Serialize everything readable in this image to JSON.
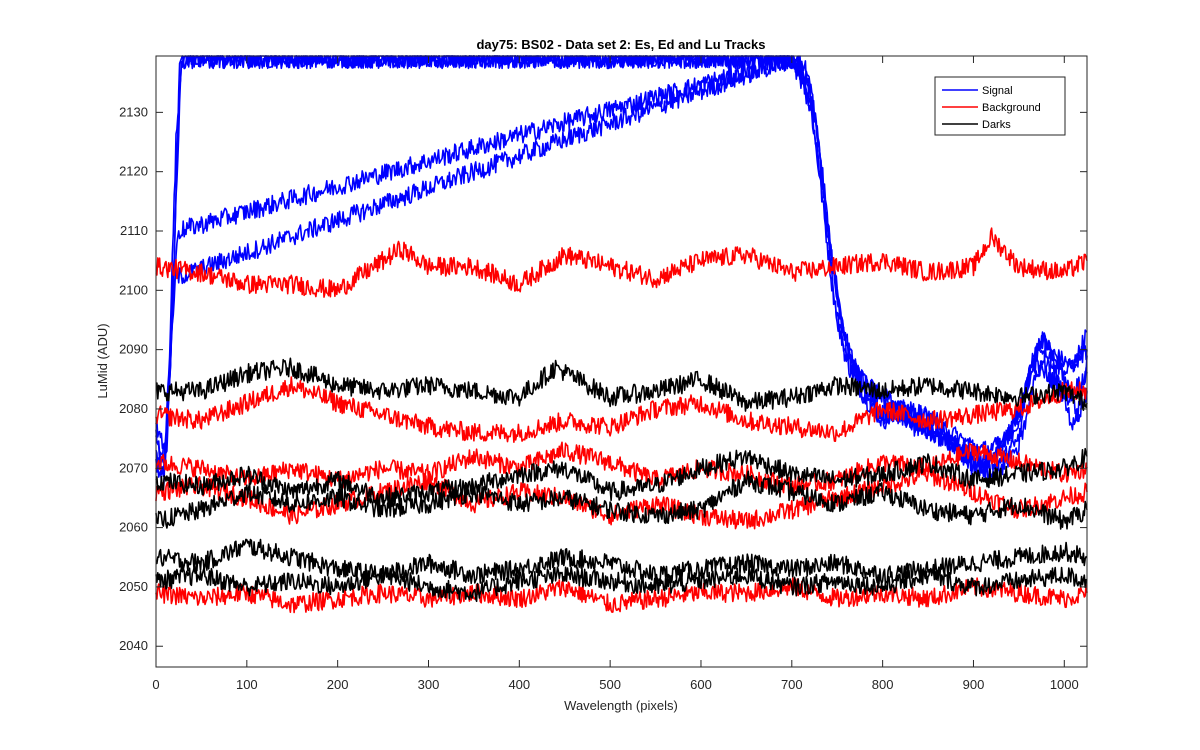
{
  "chart_data": {
    "type": "line",
    "title": "day75: BS02 - Data set 2: Es, Ed and Lu Tracks",
    "xlabel": "Wavelength (pixels)",
    "ylabel": "LuMid (ADU)",
    "xlim": [
      0,
      1025
    ],
    "ylim": [
      2036.5,
      2139.5
    ],
    "xticks": [
      0,
      100,
      200,
      300,
      400,
      500,
      600,
      700,
      800,
      900,
      1000
    ],
    "yticks": [
      2040,
      2050,
      2060,
      2070,
      2080,
      2090,
      2100,
      2110,
      2120,
      2130
    ],
    "grid": false,
    "legend_position": "top-right",
    "legend": [
      {
        "label": "Signal",
        "color": "#0000ff"
      },
      {
        "label": "Background",
        "color": "#ff0000"
      },
      {
        "label": "Darks",
        "color": "#000000"
      }
    ],
    "series": [
      {
        "group": "Signal",
        "color": "#0000ff",
        "x": [
          0,
          8,
          15,
          22,
          28,
          35,
          42,
          700,
          715,
          730,
          745,
          760,
          780,
          800,
          830,
          860,
          890,
          910,
          930,
          950,
          960,
          975,
          990,
          1010,
          1025
        ],
        "values": [
          2076,
          2068,
          2085,
          2115,
          2138,
          2139,
          2139,
          2139,
          2138,
          2120,
          2100,
          2088,
          2082,
          2078,
          2080,
          2078,
          2073,
          2071,
          2070,
          2074,
          2086,
          2092,
          2089,
          2087,
          2093
        ]
      },
      {
        "group": "Signal",
        "color": "#0000ff",
        "x": [
          0,
          8,
          15,
          22,
          28,
          40,
          700,
          718,
          735,
          750,
          765,
          785,
          805,
          835,
          865,
          890,
          915,
          935,
          955,
          965,
          980,
          1000,
          1025
        ],
        "values": [
          2072,
          2066,
          2090,
          2125,
          2139,
          2139,
          2139,
          2136,
          2115,
          2095,
          2087,
          2084,
          2081,
          2077,
          2076,
          2072,
          2069,
          2072,
          2076,
          2084,
          2090,
          2086,
          2090
        ]
      },
      {
        "group": "Signal",
        "color": "#0000ff",
        "x": [
          0,
          10,
          18,
          26,
          700,
          725,
          742,
          758,
          775,
          795,
          820,
          850,
          880,
          905,
          925,
          950,
          965,
          985,
          1005,
          1025
        ],
        "values": [
          2074,
          2070,
          2095,
          2139,
          2139,
          2130,
          2108,
          2092,
          2085,
          2080,
          2079,
          2076,
          2074,
          2071,
          2072,
          2078,
          2088,
          2085,
          2082,
          2086
        ]
      },
      {
        "group": "Signal",
        "color": "#0000ff",
        "x": [
          0,
          12,
          20,
          700,
          728,
          745,
          760,
          780,
          800,
          825,
          855,
          885,
          910,
          930,
          955,
          970,
          990,
          1010,
          1025
        ],
        "values": [
          2070,
          2074,
          2102,
          2139,
          2128,
          2104,
          2090,
          2082,
          2079,
          2080,
          2078,
          2075,
          2073,
          2074,
          2081,
          2090,
          2086,
          2077,
          2083
        ]
      },
      {
        "group": "Signal",
        "color": "#0000ff",
        "x": [
          0,
          10,
          24,
          700,
          722,
          738,
          755,
          772,
          790,
          815,
          845,
          875,
          900,
          925,
          945,
          960,
          975,
          995,
          1015,
          1025
        ],
        "values": [
          2078,
          2072,
          2110,
          2139,
          2134,
          2112,
          2094,
          2086,
          2083,
          2081,
          2077,
          2074,
          2070,
          2073,
          2077,
          2085,
          2092,
          2088,
          2079,
          2089
        ]
      },
      {
        "group": "Background",
        "color": "#ff0000",
        "x": [
          0,
          50,
          100,
          150,
          200,
          250,
          270,
          300,
          350,
          400,
          450,
          500,
          550,
          600,
          650,
          700,
          750,
          800,
          850,
          900,
          920,
          950,
          1000,
          1025
        ],
        "values": [
          2104,
          2103,
          2101,
          2101,
          2100,
          2105,
          2107,
          2104,
          2104,
          2101,
          2106,
          2104,
          2102,
          2105,
          2106,
          2103,
          2104,
          2105,
          2103,
          2104,
          2109,
          2104,
          2103,
          2105
        ]
      },
      {
        "group": "Background",
        "color": "#ff0000",
        "x": [
          0,
          50,
          100,
          150,
          200,
          250,
          300,
          350,
          400,
          450,
          500,
          550,
          600,
          650,
          700,
          750,
          800,
          850,
          900,
          950,
          1000,
          1025
        ],
        "values": [
          2079,
          2078,
          2081,
          2084,
          2081,
          2079,
          2077,
          2076,
          2076,
          2078,
          2077,
          2080,
          2081,
          2078,
          2077,
          2076,
          2080,
          2078,
          2079,
          2080,
          2083,
          2083
        ]
      },
      {
        "group": "Background",
        "color": "#ff0000",
        "x": [
          0,
          50,
          100,
          150,
          200,
          250,
          300,
          350,
          400,
          450,
          500,
          550,
          600,
          650,
          700,
          750,
          800,
          850,
          900,
          950,
          1000,
          1025
        ],
        "values": [
          2071,
          2070,
          2068,
          2070,
          2068,
          2070,
          2069,
          2072,
          2070,
          2073,
          2071,
          2068,
          2070,
          2069,
          2067,
          2068,
          2071,
          2070,
          2073,
          2071,
          2069,
          2070
        ]
      },
      {
        "group": "Background",
        "color": "#ff0000",
        "x": [
          0,
          50,
          100,
          150,
          200,
          250,
          300,
          350,
          400,
          450,
          500,
          550,
          600,
          650,
          700,
          750,
          800,
          850,
          900,
          950,
          1000,
          1025
        ],
        "values": [
          2066,
          2067,
          2065,
          2062,
          2064,
          2066,
          2068,
          2064,
          2066,
          2065,
          2062,
          2064,
          2062,
          2061,
          2063,
          2065,
          2067,
          2069,
          2066,
          2063,
          2065,
          2066
        ]
      },
      {
        "group": "Background",
        "color": "#ff0000",
        "x": [
          0,
          50,
          100,
          150,
          200,
          250,
          300,
          350,
          400,
          450,
          500,
          550,
          600,
          650,
          700,
          750,
          800,
          850,
          900,
          950,
          1000,
          1025
        ],
        "values": [
          2049,
          2048,
          2049,
          2047,
          2048,
          2049,
          2048,
          2049,
          2048,
          2050,
          2047,
          2048,
          2049,
          2049,
          2050,
          2048,
          2049,
          2048,
          2050,
          2049,
          2048,
          2049
        ]
      },
      {
        "group": "Darks",
        "color": "#000000",
        "x": [
          0,
          50,
          100,
          150,
          200,
          250,
          300,
          350,
          400,
          440,
          500,
          550,
          600,
          650,
          700,
          750,
          800,
          850,
          900,
          950,
          1000,
          1025
        ],
        "values": [
          2083,
          2083,
          2086,
          2087,
          2084,
          2083,
          2084,
          2083,
          2082,
          2087,
          2082,
          2083,
          2085,
          2081,
          2082,
          2084,
          2083,
          2084,
          2083,
          2082,
          2083,
          2081
        ]
      },
      {
        "group": "Darks",
        "color": "#000000",
        "x": [
          0,
          50,
          100,
          150,
          200,
          250,
          300,
          350,
          400,
          450,
          500,
          550,
          600,
          650,
          700,
          750,
          800,
          850,
          900,
          950,
          1000,
          1025
        ],
        "values": [
          2068,
          2067,
          2069,
          2066,
          2068,
          2065,
          2066,
          2067,
          2069,
          2070,
          2066,
          2067,
          2070,
          2072,
          2069,
          2068,
          2069,
          2071,
          2068,
          2069,
          2070,
          2072
        ]
      },
      {
        "group": "Darks",
        "color": "#000000",
        "x": [
          0,
          50,
          100,
          150,
          200,
          250,
          300,
          350,
          400,
          450,
          500,
          550,
          600,
          650,
          700,
          750,
          800,
          850,
          900,
          950,
          1000,
          1025
        ],
        "values": [
          2061,
          2063,
          2066,
          2064,
          2065,
          2063,
          2064,
          2066,
          2064,
          2065,
          2063,
          2062,
          2063,
          2068,
          2066,
          2064,
          2066,
          2063,
          2062,
          2064,
          2061,
          2063
        ]
      },
      {
        "group": "Darks",
        "color": "#000000",
        "x": [
          0,
          50,
          100,
          150,
          200,
          250,
          300,
          350,
          400,
          450,
          500,
          550,
          600,
          650,
          700,
          750,
          800,
          850,
          900,
          950,
          1000,
          1025
        ],
        "values": [
          2055,
          2054,
          2057,
          2055,
          2053,
          2052,
          2054,
          2052,
          2053,
          2055,
          2054,
          2052,
          2053,
          2054,
          2053,
          2054,
          2052,
          2053,
          2054,
          2055,
          2056,
          2055
        ]
      },
      {
        "group": "Darks",
        "color": "#000000",
        "x": [
          0,
          50,
          100,
          150,
          200,
          250,
          300,
          350,
          400,
          450,
          500,
          550,
          600,
          650,
          700,
          750,
          800,
          850,
          900,
          950,
          1000,
          1025
        ],
        "values": [
          2051,
          2052,
          2050,
          2051,
          2050,
          2052,
          2050,
          2049,
          2051,
          2052,
          2051,
          2050,
          2051,
          2052,
          2050,
          2051,
          2050,
          2052,
          2050,
          2051,
          2052,
          2051
        ]
      }
    ]
  }
}
